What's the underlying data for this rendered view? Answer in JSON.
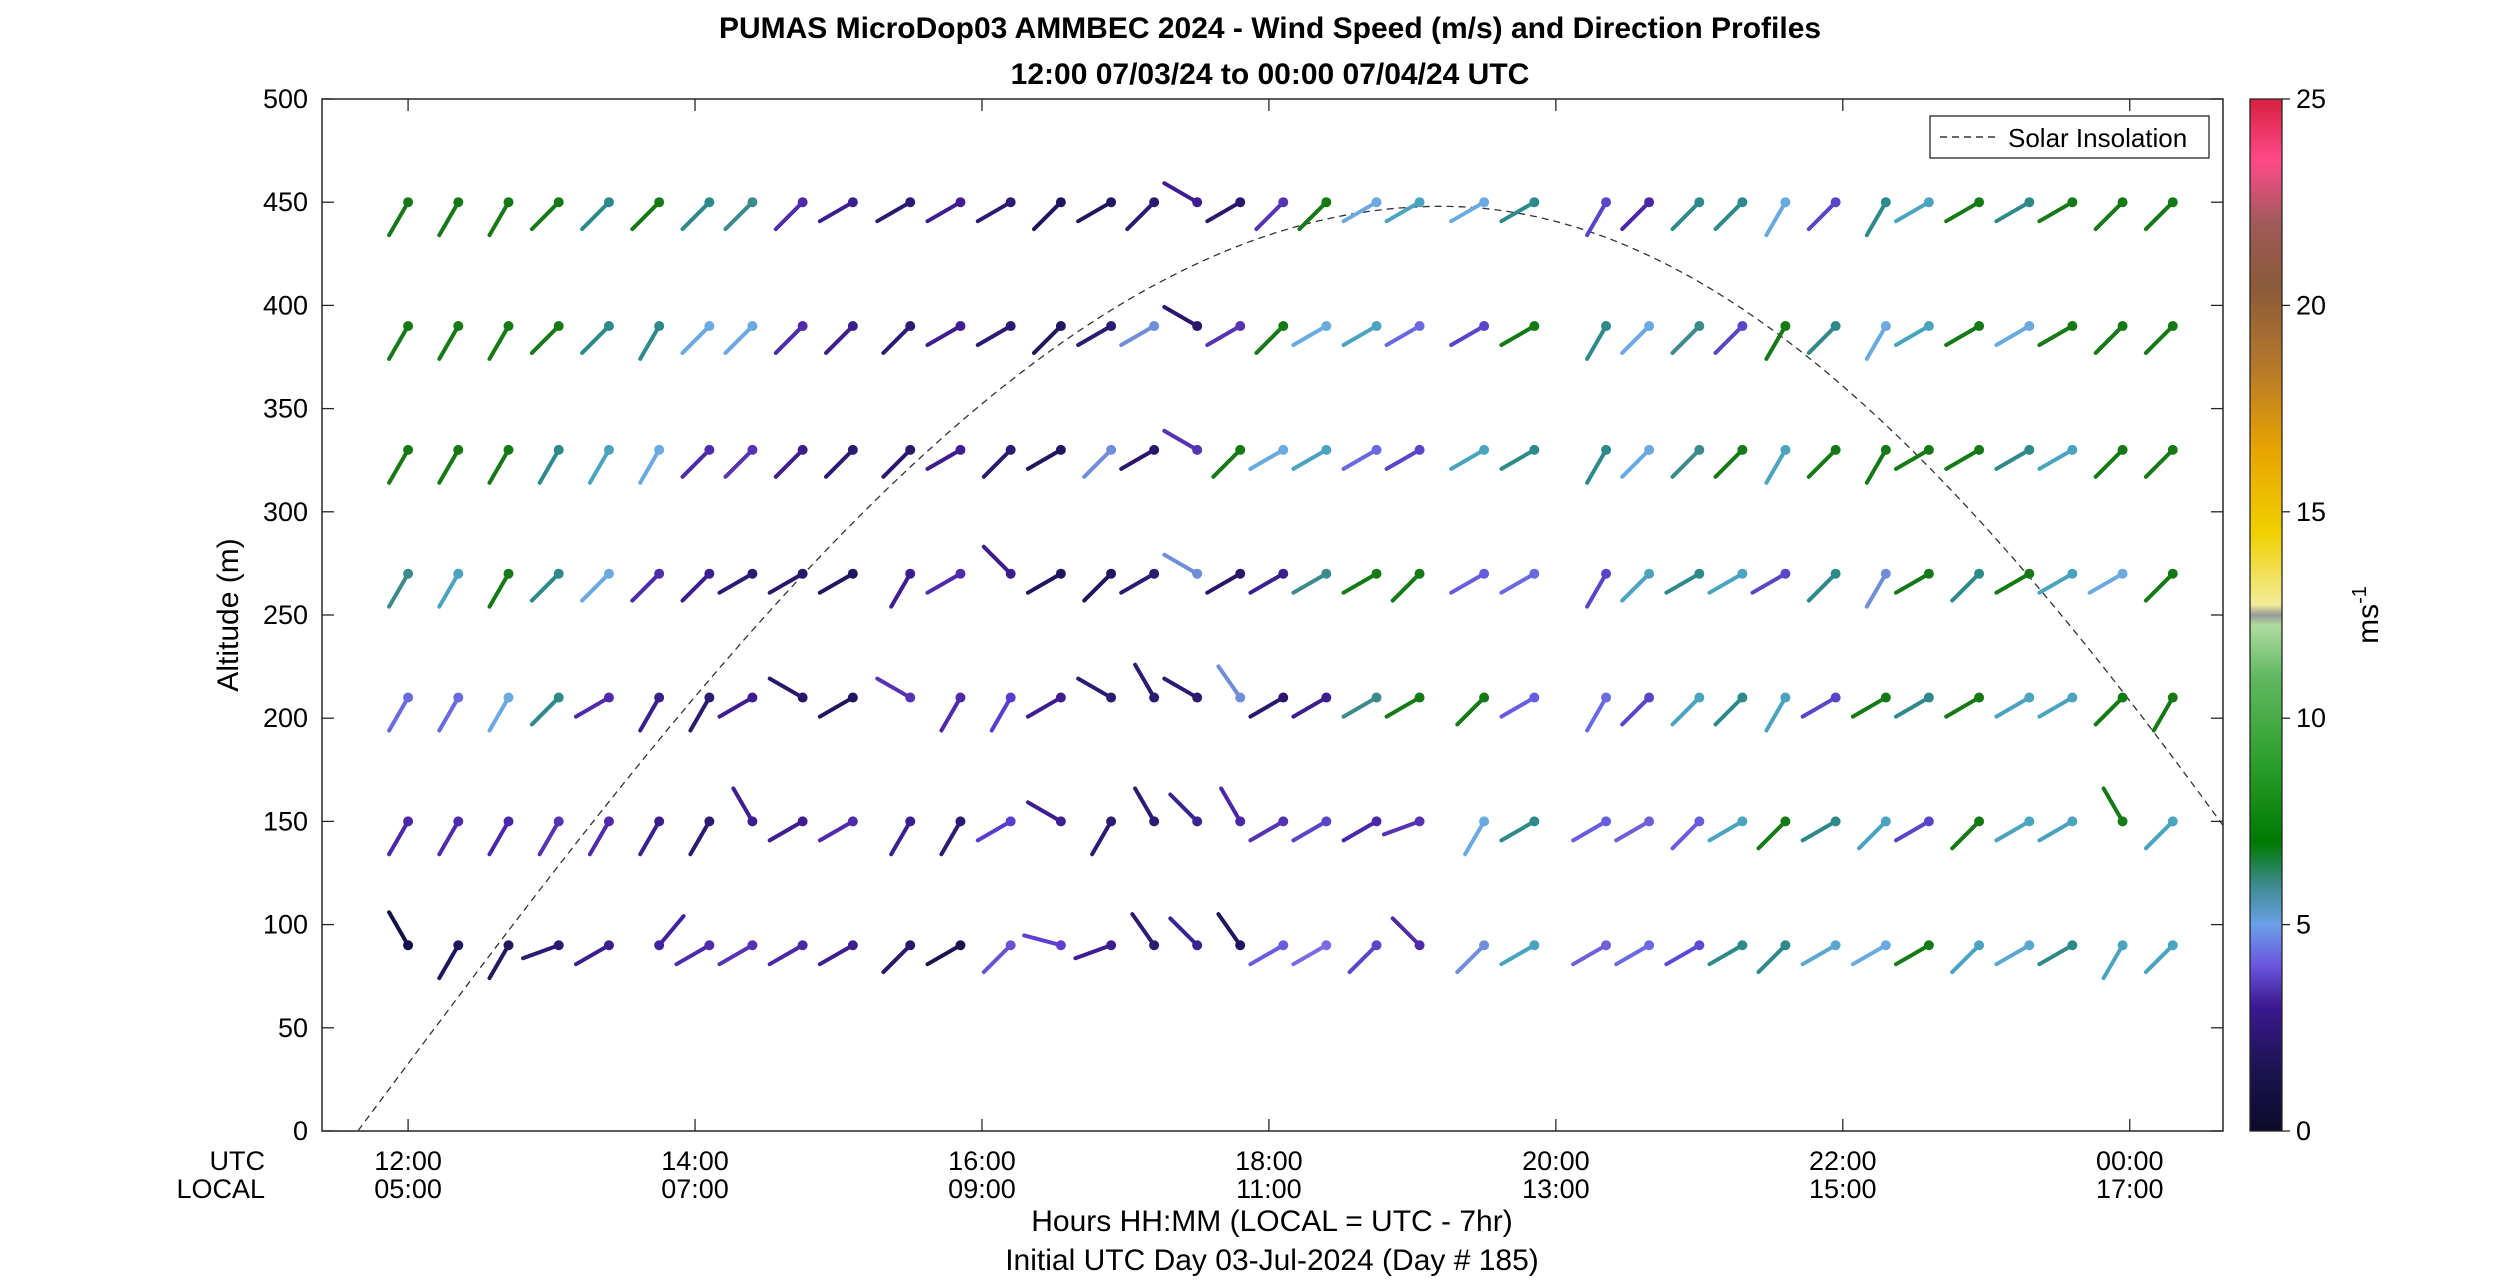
{
  "chart_data": {
    "type": "scatter",
    "title": "PUMAS MicroDop03 AMMBEC 2024 - Wind Speed (m/s) and Direction Profiles",
    "subtitle": "12:00 07/03/24 to 00:00 07/04/24  UTC",
    "ylabel": "Altitude (m)",
    "xlabel": "Hours HH:MM  (LOCAL = UTC - 7hr)",
    "xlabel2": "Initial UTC Day 03-Jul-2024 (Day # 185)",
    "row_utc": "UTC",
    "row_local": "LOCAL",
    "ylim": [
      0,
      500
    ],
    "xlim_hours": [
      11.4,
      24.65
    ],
    "yticks": [
      "0",
      "50",
      "100",
      "150",
      "200",
      "250",
      "300",
      "350",
      "400",
      "450",
      "500"
    ],
    "xticks": [
      {
        "utc": "12:00",
        "local": "05:00"
      },
      {
        "utc": "14:00",
        "local": "07:00"
      },
      {
        "utc": "16:00",
        "local": "09:00"
      },
      {
        "utc": "18:00",
        "local": "11:00"
      },
      {
        "utc": "20:00",
        "local": "13:00"
      },
      {
        "utc": "22:00",
        "local": "15:00"
      },
      {
        "utc": "00:00",
        "local": "17:00"
      }
    ],
    "legend": {
      "label": "Solar Insolation",
      "placement": "top-right",
      "style": "dashed"
    },
    "colorbar": {
      "label": "ms",
      "label_sup": "-1",
      "range": [
        0,
        25
      ],
      "ticks": [
        "0",
        "5",
        "10",
        "15",
        "20",
        "25"
      ]
    },
    "solar_curve": {
      "start_hours": 11.65,
      "peak_hours": 19.2,
      "peak_altitude": 448,
      "end_hours": 24.65,
      "end_altitude": 148
    },
    "altitudes": [
      90,
      150,
      210,
      270,
      330,
      390,
      450
    ],
    "times": [
      12.0,
      12.35,
      12.7,
      13.05,
      13.4,
      13.75,
      14.1,
      14.4,
      14.75,
      15.1,
      15.5,
      15.85,
      16.2,
      16.55,
      16.9,
      17.2,
      17.5,
      17.8,
      18.1,
      18.4,
      18.75,
      19.05,
      19.5,
      19.85,
      20.35,
      20.65,
      21.0,
      21.3,
      21.6,
      21.95,
      22.3,
      22.6,
      22.95,
      23.3,
      23.6,
      23.95,
      24.3
    ],
    "directions_deg": [
      [
        330,
        210,
        210,
        250,
        240,
        40,
        240,
        240,
        240,
        240,
        225,
        240,
        225,
        285,
        250,
        325,
        315,
        325,
        240,
        240,
        225,
        315,
        225,
        240,
        240,
        240,
        240,
        240,
        225,
        240,
        240,
        240,
        225,
        240,
        240,
        210,
        225
      ],
      [
        210,
        210,
        210,
        210,
        210,
        210,
        210,
        330,
        240,
        240,
        210,
        210,
        240,
        300,
        210,
        330,
        315,
        330,
        240,
        240,
        240,
        250,
        210,
        240,
        240,
        240,
        225,
        240,
        225,
        240,
        225,
        240,
        225,
        240,
        240,
        330,
        225
      ],
      [
        210,
        210,
        210,
        225,
        240,
        210,
        210,
        240,
        300,
        240,
        300,
        210,
        210,
        240,
        300,
        330,
        300,
        325,
        240,
        240,
        240,
        240,
        225,
        240,
        210,
        225,
        225,
        225,
        210,
        240,
        240,
        240,
        240,
        240,
        240,
        225,
        210
      ],
      [
        210,
        210,
        210,
        225,
        225,
        225,
        225,
        240,
        240,
        240,
        210,
        240,
        315,
        240,
        225,
        240,
        300,
        240,
        240,
        240,
        240,
        225,
        240,
        240,
        210,
        225,
        240,
        240,
        240,
        225,
        210,
        240,
        225,
        240,
        240,
        240,
        225
      ],
      [
        210,
        210,
        210,
        210,
        210,
        210,
        225,
        225,
        225,
        225,
        225,
        240,
        225,
        240,
        225,
        240,
        300,
        225,
        240,
        240,
        240,
        240,
        240,
        240,
        210,
        225,
        225,
        225,
        210,
        225,
        210,
        240,
        240,
        240,
        240,
        225,
        225
      ],
      [
        210,
        210,
        210,
        225,
        225,
        210,
        225,
        225,
        225,
        225,
        225,
        240,
        240,
        225,
        240,
        240,
        300,
        240,
        225,
        240,
        240,
        240,
        240,
        240,
        210,
        225,
        225,
        225,
        210,
        225,
        210,
        240,
        240,
        240,
        240,
        225,
        225
      ],
      [
        210,
        210,
        210,
        225,
        225,
        225,
        225,
        225,
        225,
        240,
        240,
        240,
        240,
        225,
        240,
        225,
        300,
        240,
        225,
        225,
        240,
        240,
        240,
        240,
        210,
        225,
        225,
        225,
        210,
        225,
        210,
        240,
        240,
        240,
        240,
        225,
        225
      ]
    ],
    "colors": [
      [
        "#131149",
        "#1f1660",
        "#24175d",
        "#2d1a72",
        "#3a1f8e",
        "#3f22a0",
        "#4f2aaa",
        "#5533b3",
        "#4a27a8",
        "#3d1d90",
        "#2a176b",
        "#1c1252",
        "#6b52d0",
        "#5e3fd0",
        "#3d1d90",
        "#2d1a72",
        "#3a2590",
        "#1f1660",
        "#6a5ce0",
        "#7a6ae4",
        "#5a45c8",
        "#4f2aaa",
        "#6f8dd8",
        "#4aa4c0",
        "#7060d8",
        "#6a6ae0",
        "#5a4ad8",
        "#2e8a8a",
        "#2e8a8a",
        "#5aa8d0",
        "#6aaae0",
        "#157a15",
        "#4aa4c0",
        "#5aa8d0",
        "#2e8a8a",
        "#4aa4c0",
        "#4aa4c0"
      ],
      [
        "#4a27a8",
        "#4f2aaa",
        "#4a27a8",
        "#5533b3",
        "#4f2aaa",
        "#3a1f8e",
        "#2d1a72",
        "#3d1d90",
        "#3d1d90",
        "#4f2aaa",
        "#3a1f8e",
        "#2d1a72",
        "#5a3cd0",
        "#3d1d90",
        "#2d1a72",
        "#2d1a72",
        "#3a2590",
        "#4a27a8",
        "#5533b3",
        "#5a45c8",
        "#4a27a8",
        "#5533b3",
        "#6aaae0",
        "#2e8a8a",
        "#6a5ce0",
        "#7060d8",
        "#6a5ce0",
        "#4aa4c0",
        "#157a15",
        "#2e8a8a",
        "#4aa4c0",
        "#5a45c8",
        "#157a15",
        "#4aa4c0",
        "#4aa4c0",
        "#157a15",
        "#4aa4c0"
      ],
      [
        "#6a6ae0",
        "#6a6ae0",
        "#6aaae0",
        "#2e8a8a",
        "#4f2aaa",
        "#3a1f8e",
        "#2d1a72",
        "#3d1d90",
        "#2a176b",
        "#1f1660",
        "#5533b3",
        "#4f2aaa",
        "#5a3cd0",
        "#3d1d90",
        "#2d1a72",
        "#2d1a72",
        "#2d1a72",
        "#6f8dd8",
        "#2a176b",
        "#3a1f8e",
        "#3d8a8a",
        "#157a15",
        "#157a15",
        "#6a5ce0",
        "#6a6ae0",
        "#5a45c8",
        "#4aa4c0",
        "#2e8a8a",
        "#4aa4c0",
        "#5a45c8",
        "#157a15",
        "#2e8a8a",
        "#157a15",
        "#4aa4c0",
        "#4aa4c0",
        "#157a15",
        "#157a15"
      ],
      [
        "#3d8a8a",
        "#4aa4c0",
        "#157a15",
        "#2e8a8a",
        "#6aaae0",
        "#4f2aaa",
        "#3a1f8e",
        "#2d1a72",
        "#2a176b",
        "#1f1660",
        "#3d1d90",
        "#4f2aaa",
        "#3d1d90",
        "#1f1660",
        "#1f1660",
        "#2d1a72",
        "#6f8dd8",
        "#2a176b",
        "#3a1f8e",
        "#3d8a8a",
        "#157a15",
        "#157a15",
        "#6a5ce0",
        "#6a6ae0",
        "#5a45c8",
        "#4aa4c0",
        "#2e8a8a",
        "#4aa4c0",
        "#5a45c8",
        "#2e8a8a",
        "#6f8dd8",
        "#157a15",
        "#2e8a8a",
        "#157a15",
        "#4aa4c0",
        "#6aaae0",
        "#157a15"
      ],
      [
        "#157a15",
        "#157a15",
        "#157a15",
        "#2e8a8a",
        "#4aa4c0",
        "#6aaae0",
        "#4f2aaa",
        "#5533b3",
        "#3a1f8e",
        "#2d1a72",
        "#2a176b",
        "#3d1d90",
        "#2d1a72",
        "#1f1660",
        "#6f8dd8",
        "#2a176b",
        "#5533b3",
        "#157a15",
        "#6aaae0",
        "#4aa4c0",
        "#6a6ae0",
        "#5a45c8",
        "#4aa4c0",
        "#2e8a8a",
        "#2e8a8a",
        "#6aaae0",
        "#3d8a8a",
        "#157a15",
        "#4aa4c0",
        "#157a15",
        "#157a15",
        "#157a15",
        "#157a15",
        "#2e8a8a",
        "#4aa4c0",
        "#157a15",
        "#157a15"
      ],
      [
        "#157a15",
        "#157a15",
        "#157a15",
        "#157a15",
        "#2e8a8a",
        "#2e8a8a",
        "#6aaae0",
        "#6aaae0",
        "#4f2aaa",
        "#3a1f8e",
        "#2d1a72",
        "#3d1d90",
        "#2d1a72",
        "#1f1660",
        "#2d1a72",
        "#6f8dd8",
        "#2a176b",
        "#5533b3",
        "#157a15",
        "#6aaae0",
        "#4aa4c0",
        "#6a6ae0",
        "#5a45c8",
        "#157a15",
        "#2e8a8a",
        "#6aaae0",
        "#3d8a8a",
        "#5a45c8",
        "#157a15",
        "#2e8a8a",
        "#6aaae0",
        "#4aa4c0",
        "#157a15",
        "#6aaae0",
        "#157a15",
        "#157a15",
        "#157a15"
      ],
      [
        "#157a15",
        "#157a15",
        "#157a15",
        "#157a15",
        "#2e8a8a",
        "#157a15",
        "#2e8a8a",
        "#3d8a8a",
        "#4f2aaa",
        "#3a1f8e",
        "#2d1a72",
        "#3d1d90",
        "#2d1a72",
        "#1f1660",
        "#1f1660",
        "#2d1a72",
        "#3d1d90",
        "#2a176b",
        "#5533b3",
        "#157a15",
        "#6aaae0",
        "#4aa4c0",
        "#6aaae0",
        "#2e8a8a",
        "#5a45c8",
        "#4a27a8",
        "#2e8a8a",
        "#2e8a8a",
        "#6aaae0",
        "#5a45c8",
        "#2e8a8a",
        "#4aa4c0",
        "#157a15",
        "#2e8a8a",
        "#157a15",
        "#157a15",
        "#157a15"
      ]
    ]
  }
}
